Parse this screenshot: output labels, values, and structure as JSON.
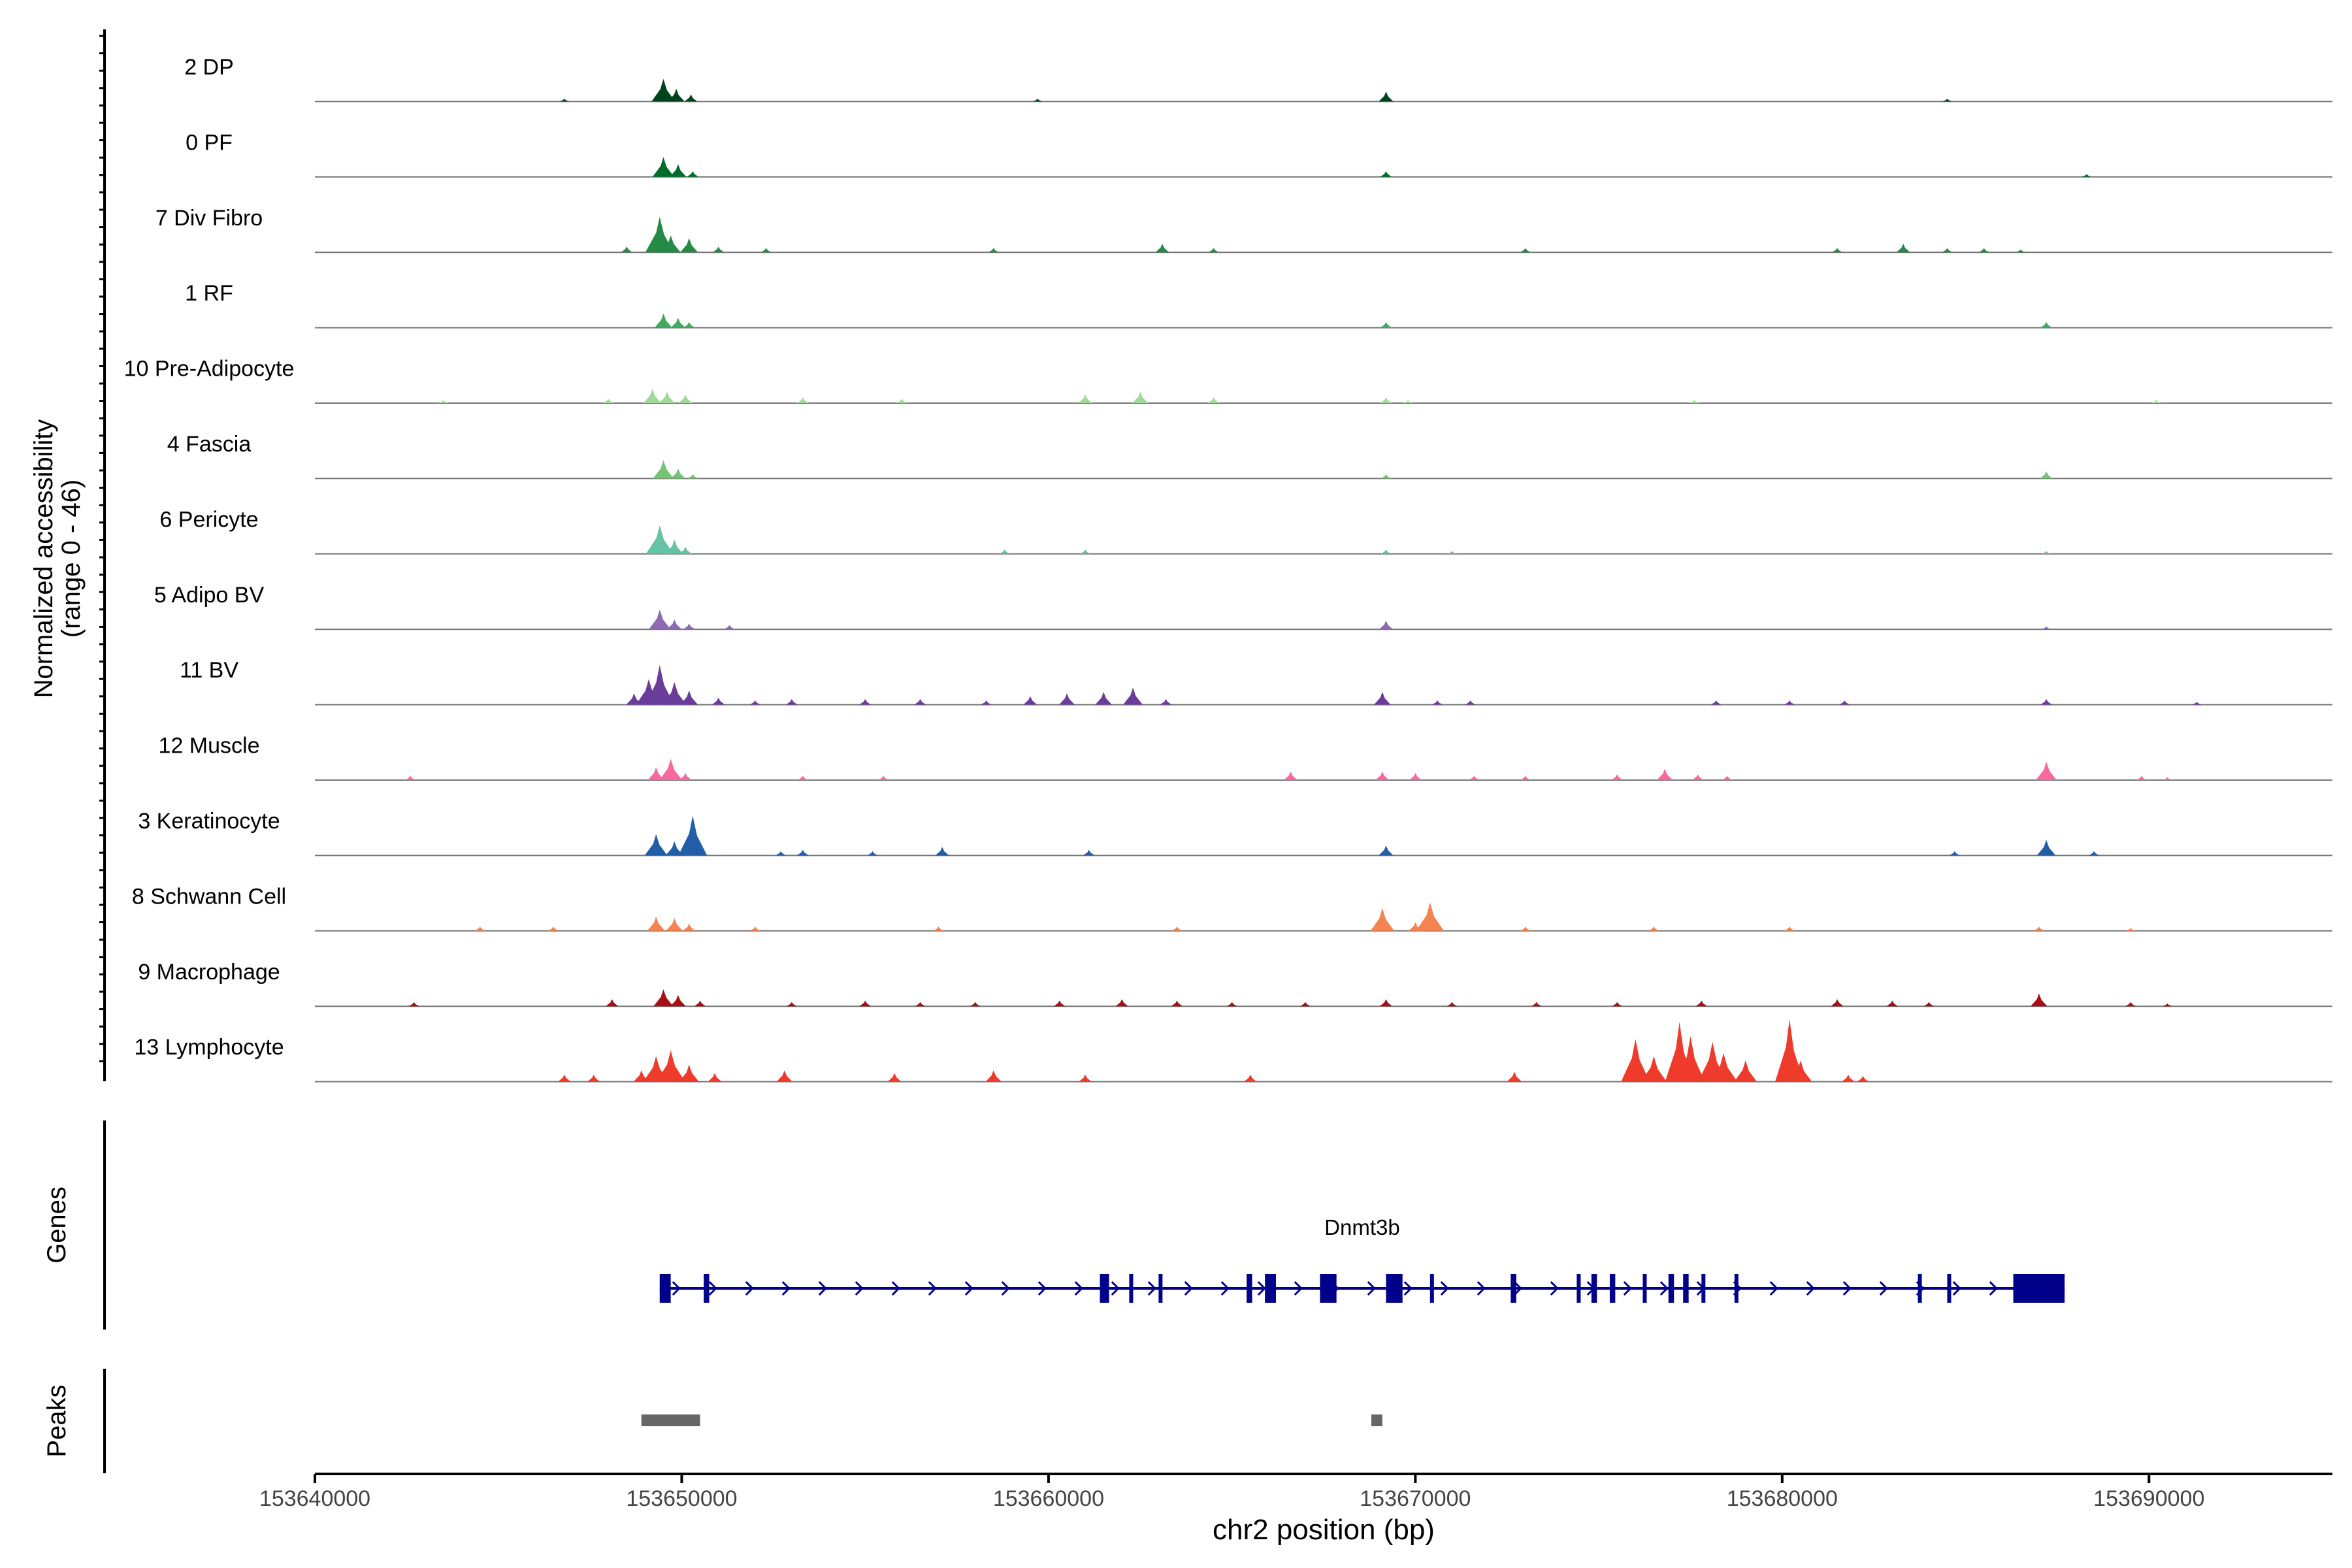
{
  "chart_data": {
    "type": "coverage-track",
    "region": "chr2",
    "xlabel": "chr2 position (bp)",
    "ylabel_line1": "Normalized accessibility",
    "ylabel_line2": "(range 0 - 46)",
    "y_range": [
      0,
      46
    ],
    "xlim": [
      153640000,
      153695000
    ],
    "x_ticks": [
      153640000,
      153650000,
      153660000,
      153670000,
      153680000,
      153690000
    ],
    "x_tick_labels": [
      "153640000",
      "153650000",
      "153660000",
      "153670000",
      "153680000",
      "153690000"
    ],
    "tracks": [
      {
        "name": "2 DP",
        "color": "#00441b",
        "peaks": [
          [
            153649500,
            16
          ],
          [
            153649850,
            9
          ],
          [
            153650250,
            5
          ],
          [
            153669200,
            7
          ],
          [
            153646800,
            2
          ],
          [
            153659700,
            2
          ],
          [
            153684500,
            2
          ]
        ]
      },
      {
        "name": "0 PF",
        "color": "#006d2c",
        "peaks": [
          [
            153649500,
            14
          ],
          [
            153649900,
            9
          ],
          [
            153650300,
            4
          ],
          [
            153669200,
            4
          ],
          [
            153688300,
            2
          ]
        ]
      },
      {
        "name": "7 Div Fibro",
        "color": "#238b45",
        "peaks": [
          [
            153649400,
            25
          ],
          [
            153649700,
            12
          ],
          [
            153650200,
            10
          ],
          [
            153651000,
            4
          ],
          [
            153648500,
            4
          ],
          [
            153652300,
            3
          ],
          [
            153658500,
            3
          ],
          [
            153663100,
            6
          ],
          [
            153664500,
            3
          ],
          [
            153673000,
            3
          ],
          [
            153681500,
            3
          ],
          [
            153683300,
            6
          ],
          [
            153684500,
            3
          ],
          [
            153685500,
            3
          ],
          [
            153686500,
            2
          ]
        ]
      },
      {
        "name": "1 RF",
        "color": "#41ab5d",
        "peaks": [
          [
            153649500,
            10
          ],
          [
            153649900,
            7
          ],
          [
            153650200,
            4
          ],
          [
            153669200,
            4
          ],
          [
            153687200,
            4
          ]
        ]
      },
      {
        "name": "10 Pre-Adipocyte",
        "color": "#a1d99b",
        "peaks": [
          [
            153649200,
            10
          ],
          [
            153649600,
            8
          ],
          [
            153650100,
            6
          ],
          [
            153648000,
            3
          ],
          [
            153643500,
            2
          ],
          [
            153653300,
            4
          ],
          [
            153656000,
            3
          ],
          [
            153661000,
            6
          ],
          [
            153662500,
            8
          ],
          [
            153664500,
            4
          ],
          [
            153669200,
            4
          ],
          [
            153669800,
            2
          ],
          [
            153677600,
            2
          ],
          [
            153690200,
            2
          ]
        ]
      },
      {
        "name": "4 Fascia",
        "color": "#74c476",
        "peaks": [
          [
            153649500,
            13
          ],
          [
            153649900,
            7
          ],
          [
            153650300,
            3
          ],
          [
            153669200,
            3
          ],
          [
            153687200,
            5
          ]
        ]
      },
      {
        "name": "6 Pericyte",
        "color": "#66c2a4",
        "peaks": [
          [
            153649400,
            20
          ],
          [
            153649800,
            10
          ],
          [
            153650100,
            5
          ],
          [
            153658800,
            3
          ],
          [
            153661000,
            3
          ],
          [
            153669200,
            3
          ],
          [
            153671000,
            2
          ],
          [
            153687200,
            2
          ]
        ]
      },
      {
        "name": "5 Adipo BV",
        "color": "#8c6bb1",
        "peaks": [
          [
            153649400,
            14
          ],
          [
            153649800,
            7
          ],
          [
            153650200,
            4
          ],
          [
            153651300,
            3
          ],
          [
            153669200,
            6
          ],
          [
            153687200,
            2
          ]
        ]
      },
      {
        "name": "11 BV",
        "color": "#6a3d9a",
        "peaks": [
          [
            153649400,
            28
          ],
          [
            153649100,
            18
          ],
          [
            153649800,
            16
          ],
          [
            153648700,
            8
          ],
          [
            153650200,
            10
          ],
          [
            153651000,
            5
          ],
          [
            153652000,
            3
          ],
          [
            153653000,
            4
          ],
          [
            153655000,
            4
          ],
          [
            153656500,
            4
          ],
          [
            153658300,
            3
          ],
          [
            153659500,
            6
          ],
          [
            153660500,
            8
          ],
          [
            153661500,
            9
          ],
          [
            153662300,
            12
          ],
          [
            153663200,
            4
          ],
          [
            153669100,
            9
          ],
          [
            153670600,
            3
          ],
          [
            153671500,
            3
          ],
          [
            153678200,
            3
          ],
          [
            153680200,
            3
          ],
          [
            153681700,
            3
          ],
          [
            153687200,
            4
          ],
          [
            153691300,
            2
          ]
        ]
      },
      {
        "name": "12 Muscle",
        "color": "#f768a1",
        "peaks": [
          [
            153649300,
            9
          ],
          [
            153649700,
            15
          ],
          [
            153650100,
            5
          ],
          [
            153642600,
            3
          ],
          [
            153653300,
            3
          ],
          [
            153655500,
            3
          ],
          [
            153666600,
            6
          ],
          [
            153669100,
            6
          ],
          [
            153670000,
            5
          ],
          [
            153671600,
            3
          ],
          [
            153673000,
            3
          ],
          [
            153675500,
            4
          ],
          [
            153676800,
            8
          ],
          [
            153677700,
            4
          ],
          [
            153678500,
            3
          ],
          [
            153687200,
            13
          ],
          [
            153689800,
            3
          ],
          [
            153690500,
            2
          ]
        ]
      },
      {
        "name": "3 Keratinocyte",
        "color": "#225ea8",
        "peaks": [
          [
            153649300,
            15
          ],
          [
            153649800,
            10
          ],
          [
            153650300,
            28
          ],
          [
            153652700,
            3
          ],
          [
            153653300,
            4
          ],
          [
            153655200,
            3
          ],
          [
            153657100,
            6
          ],
          [
            153661100,
            4
          ],
          [
            153669200,
            7
          ],
          [
            153684700,
            3
          ],
          [
            153687200,
            11
          ],
          [
            153688500,
            3
          ]
        ]
      },
      {
        "name": "8 Schwann Cell",
        "color": "#f4834f",
        "peaks": [
          [
            153649300,
            10
          ],
          [
            153649800,
            9
          ],
          [
            153650200,
            5
          ],
          [
            153644500,
            3
          ],
          [
            153646500,
            3
          ],
          [
            153652000,
            3
          ],
          [
            153657000,
            3
          ],
          [
            153663500,
            3
          ],
          [
            153669100,
            16
          ],
          [
            153670400,
            20
          ],
          [
            153670000,
            6
          ],
          [
            153673000,
            3
          ],
          [
            153676500,
            3
          ],
          [
            153680200,
            3
          ],
          [
            153687000,
            3
          ],
          [
            153689500,
            2
          ]
        ]
      },
      {
        "name": "9 Macrophage",
        "color": "#a50f15",
        "peaks": [
          [
            153649500,
            12
          ],
          [
            153649900,
            8
          ],
          [
            153648100,
            5
          ],
          [
            153650500,
            4
          ],
          [
            153642700,
            3
          ],
          [
            153653000,
            3
          ],
          [
            153655000,
            4
          ],
          [
            153656500,
            3
          ],
          [
            153658000,
            3
          ],
          [
            153660300,
            4
          ],
          [
            153662000,
            5
          ],
          [
            153663500,
            4
          ],
          [
            153665000,
            3
          ],
          [
            153667000,
            3
          ],
          [
            153669200,
            5
          ],
          [
            153671000,
            3
          ],
          [
            153673300,
            3
          ],
          [
            153675500,
            3
          ],
          [
            153677800,
            4
          ],
          [
            153681500,
            5
          ],
          [
            153683000,
            4
          ],
          [
            153684000,
            3
          ],
          [
            153687000,
            9
          ],
          [
            153689500,
            3
          ],
          [
            153690500,
            2
          ]
        ]
      },
      {
        "name": "13 Lymphocyte",
        "color": "#ef3b2c",
        "peaks": [
          [
            153649300,
            18
          ],
          [
            153649700,
            22
          ],
          [
            153650200,
            12
          ],
          [
            153648900,
            8
          ],
          [
            153650900,
            6
          ],
          [
            153646800,
            5
          ],
          [
            153647600,
            5
          ],
          [
            153652800,
            8
          ],
          [
            153655800,
            6
          ],
          [
            153658500,
            8
          ],
          [
            153661000,
            5
          ],
          [
            153665500,
            5
          ],
          [
            153672700,
            7
          ],
          [
            153676000,
            30
          ],
          [
            153676500,
            18
          ],
          [
            153677200,
            42
          ],
          [
            153677500,
            32
          ],
          [
            153678100,
            28
          ],
          [
            153678400,
            20
          ],
          [
            153679000,
            15
          ],
          [
            153680200,
            44
          ],
          [
            153680500,
            15
          ],
          [
            153681800,
            5
          ],
          [
            153682200,
            4
          ]
        ]
      }
    ],
    "genes_label": "Genes",
    "gene": {
      "name": "Dnmt3b",
      "start": 153649400,
      "end": 153687700,
      "strand": "+",
      "exons": [
        [
          153649400,
          153649700
        ],
        [
          153650600,
          153650750
        ],
        [
          153661400,
          153661650
        ],
        [
          153662200,
          153662300
        ],
        [
          153663000,
          153663100
        ],
        [
          153665400,
          153665550
        ],
        [
          153665900,
          153666200
        ],
        [
          153667400,
          153667850
        ],
        [
          153669200,
          153669650
        ],
        [
          153670400,
          153670500
        ],
        [
          153672600,
          153672750
        ],
        [
          153674400,
          153674500
        ],
        [
          153674800,
          153674950
        ],
        [
          153675300,
          153675450
        ],
        [
          153676200,
          153676300
        ],
        [
          153676900,
          153677050
        ],
        [
          153677300,
          153677450
        ],
        [
          153677800,
          153677900
        ],
        [
          153678700,
          153678800
        ],
        [
          153683700,
          153683800
        ],
        [
          153684500,
          153684600
        ],
        [
          153686300,
          153687700
        ]
      ]
    },
    "peaks_label": "Peaks",
    "peak_regions": [
      [
        153648900,
        153650500
      ],
      [
        153668800,
        153669100
      ]
    ]
  }
}
